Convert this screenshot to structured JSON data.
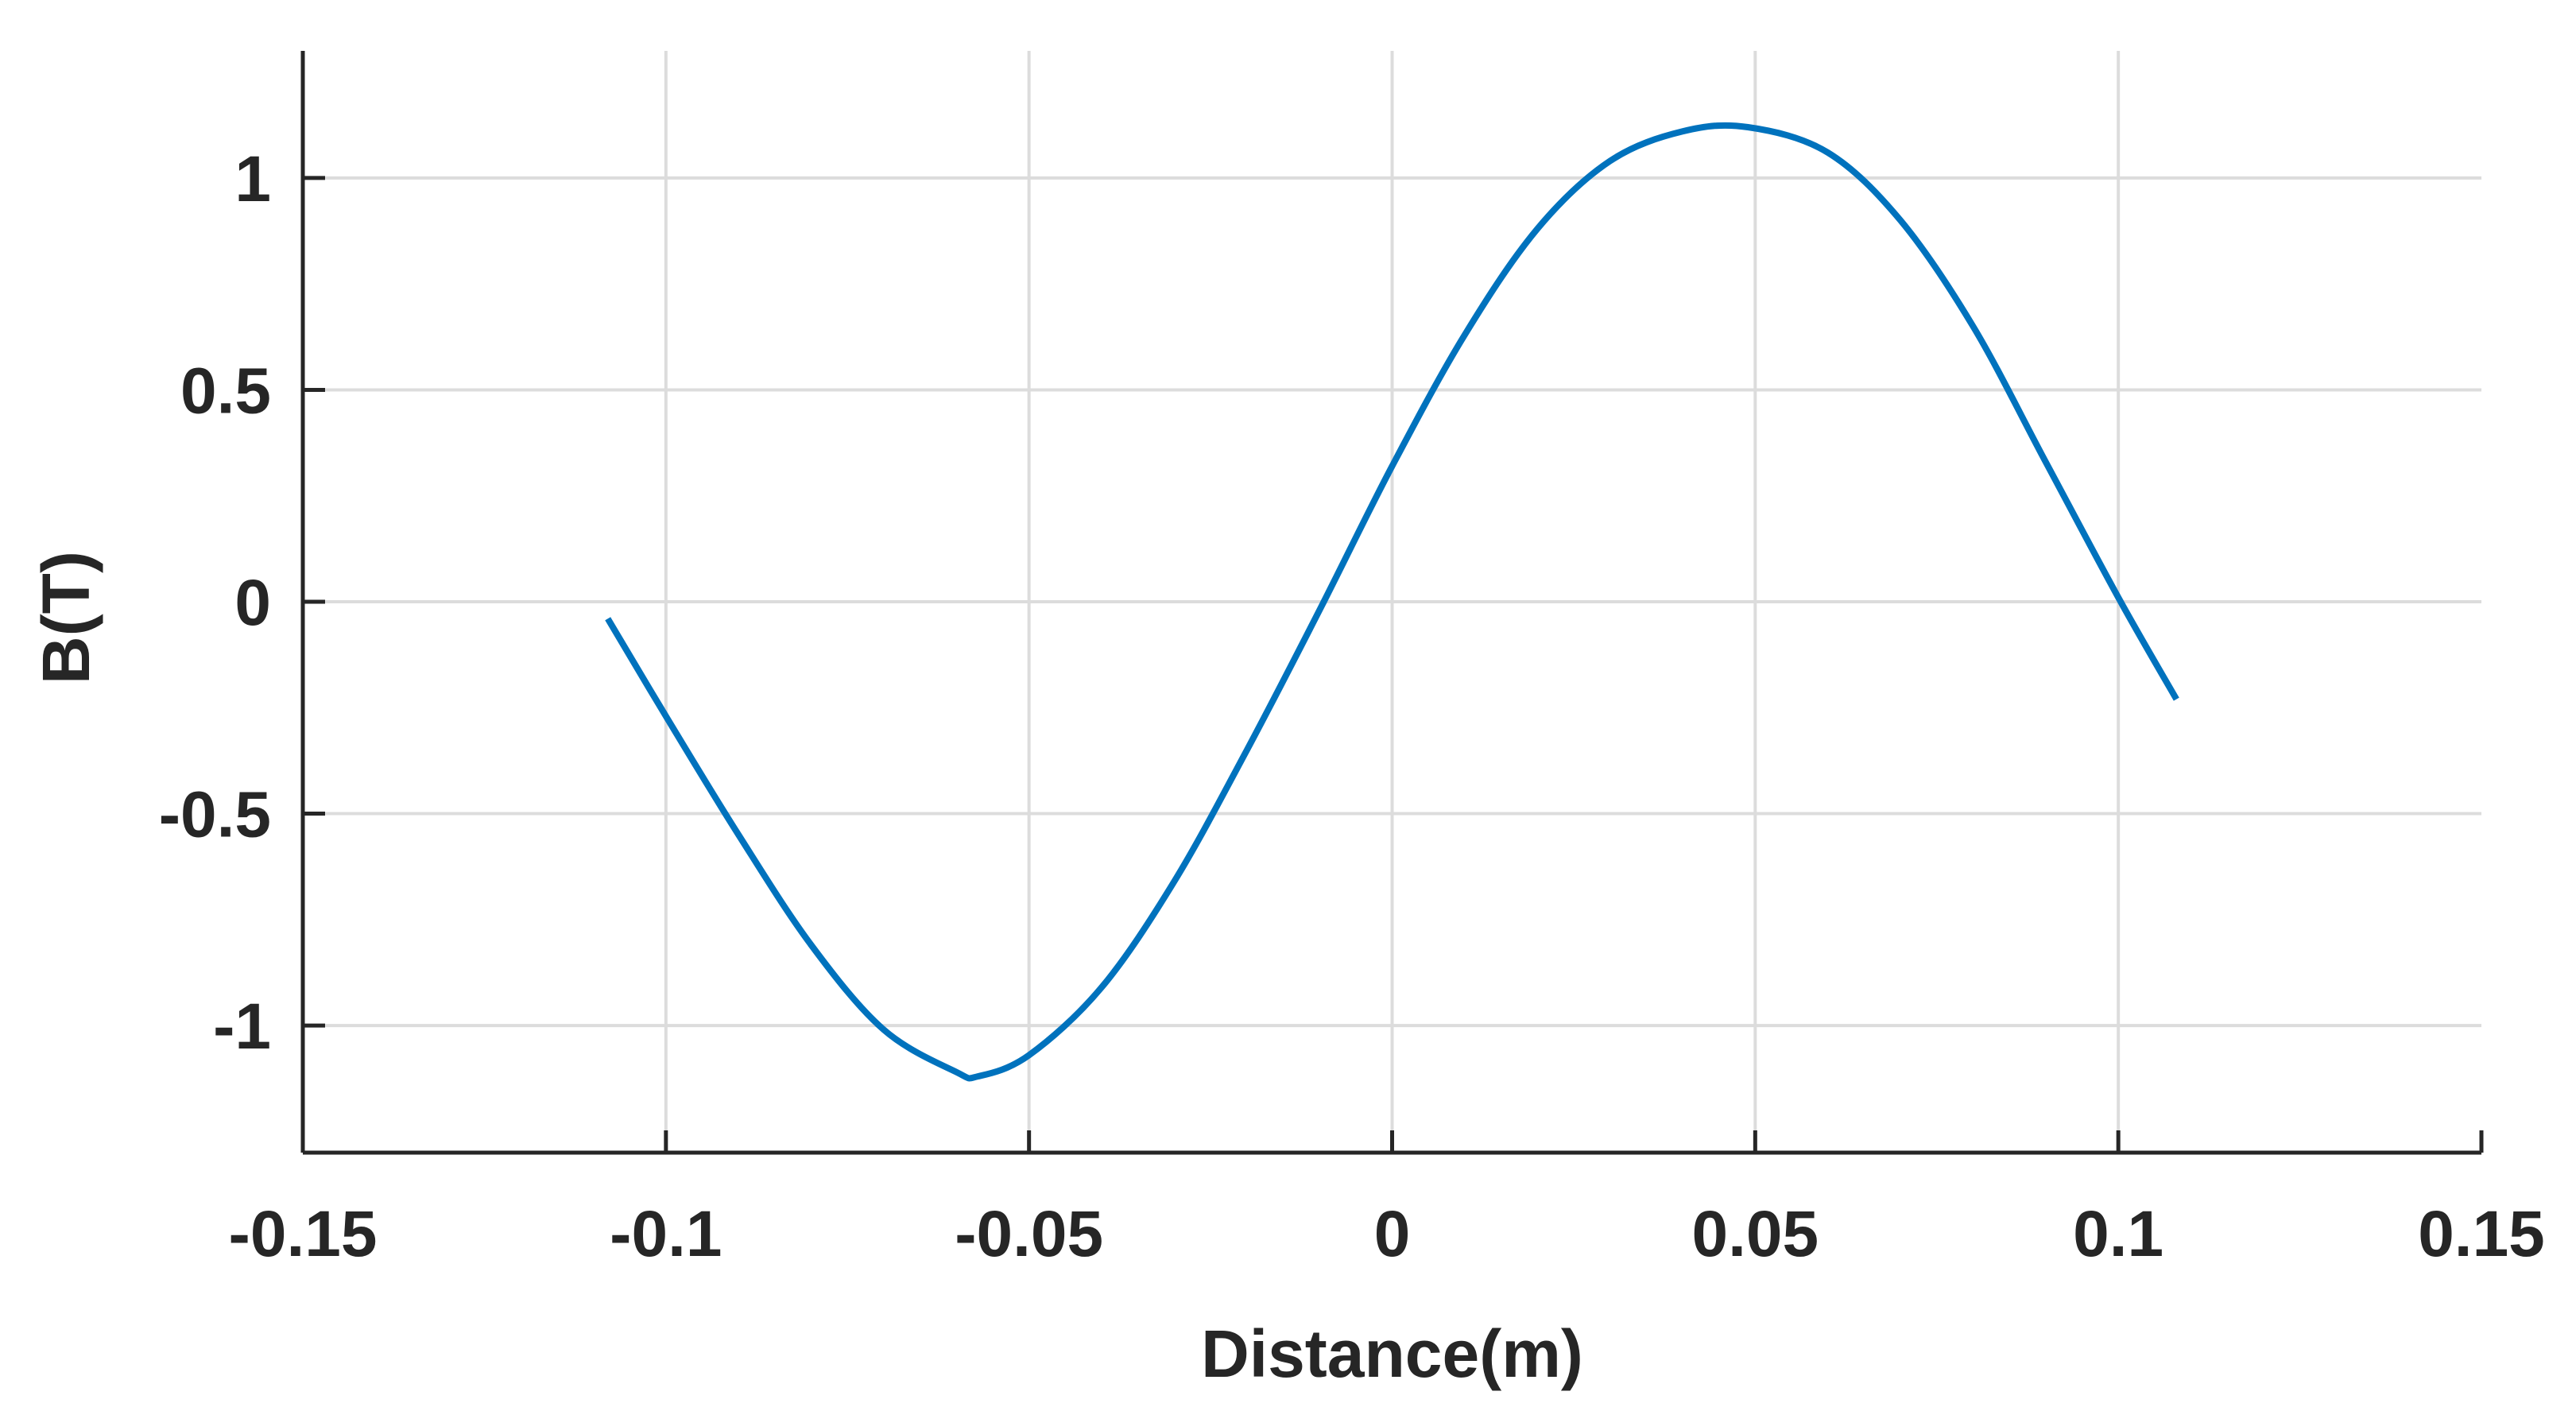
{
  "chart_data": {
    "type": "line",
    "title": "",
    "xlabel": "Distance(m)",
    "ylabel": "B(T)",
    "xlim": [
      -0.15,
      0.15
    ],
    "ylim": [
      -1.3,
      1.3
    ],
    "grid": true,
    "xticks": [
      -0.15,
      -0.1,
      -0.05,
      0,
      0.05,
      0.1,
      0.15
    ],
    "xtick_labels": [
      "-0.15",
      "-0.1",
      "-0.05",
      "0",
      "0.05",
      "0.1",
      "0.15"
    ],
    "yticks": [
      -1,
      -0.5,
      0,
      0.5,
      1
    ],
    "ytick_labels": [
      "-1",
      "-0.5",
      "0",
      "0.5",
      "1"
    ],
    "series": [
      {
        "color": "#0072BD",
        "x": [
          -0.108,
          -0.1,
          -0.09,
          -0.08,
          -0.07,
          -0.06,
          -0.057,
          -0.05,
          -0.04,
          -0.03,
          -0.02,
          -0.01,
          0,
          0.01,
          0.02,
          0.03,
          0.04,
          0.049,
          0.06,
          0.07,
          0.08,
          0.09,
          0.1,
          0.108
        ],
        "y": [
          -0.04,
          -0.27,
          -0.55,
          -0.81,
          -1.01,
          -1.11,
          -1.12,
          -1.07,
          -0.91,
          -0.66,
          -0.35,
          -0.02,
          0.32,
          0.63,
          0.88,
          1.04,
          1.11,
          1.12,
          1.06,
          0.9,
          0.65,
          0.33,
          0.01,
          -0.23
        ]
      }
    ]
  }
}
